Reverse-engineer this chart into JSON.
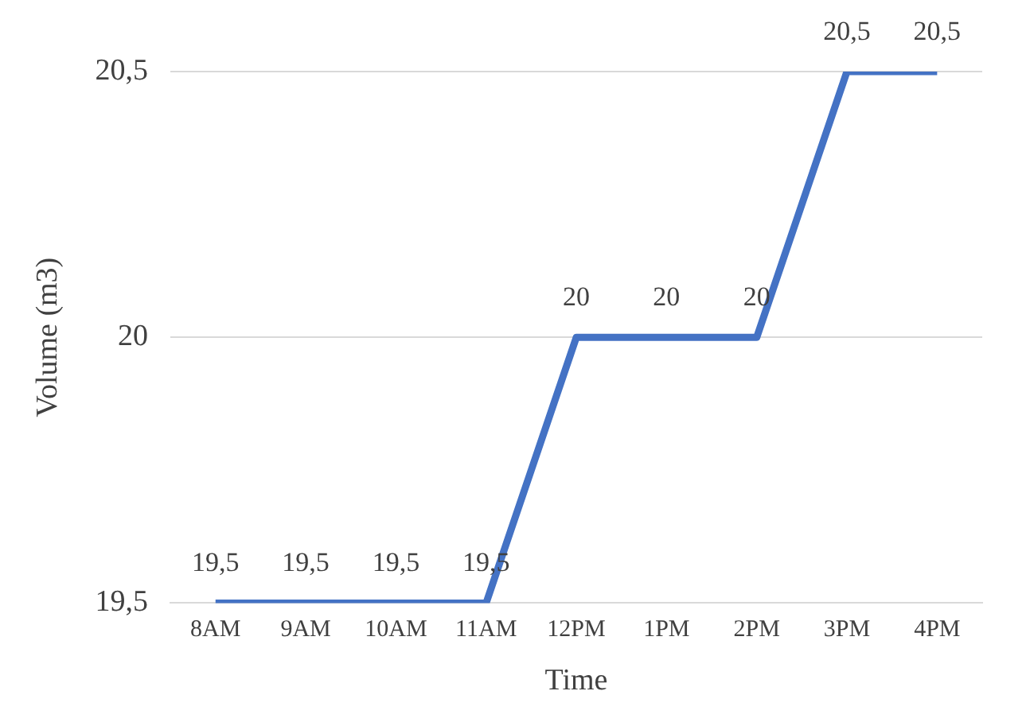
{
  "chart_data": {
    "type": "line",
    "xlabel": "Time",
    "ylabel": "Volume (m3)",
    "categories": [
      "8AM",
      "9AM",
      "10AM",
      "11AM",
      "12PM",
      "1PM",
      "2PM",
      "3PM",
      "4PM"
    ],
    "values": [
      19.5,
      19.5,
      19.5,
      19.5,
      20,
      20,
      20,
      20.5,
      20.5
    ],
    "value_labels": [
      "19,5",
      "19,5",
      "19,5",
      "19,5",
      "20",
      "20",
      "20",
      "20,5",
      "20,5"
    ],
    "color": "#4472c4",
    "ylim": [
      19.5,
      20.5
    ],
    "yticks": [
      {
        "value": 19.5,
        "label": "19,5"
      },
      {
        "value": 20,
        "label": "20"
      },
      {
        "value": 20.5,
        "label": "20,5"
      }
    ],
    "grid": "y",
    "legend": false,
    "marker": "none",
    "line_style": "solid"
  }
}
